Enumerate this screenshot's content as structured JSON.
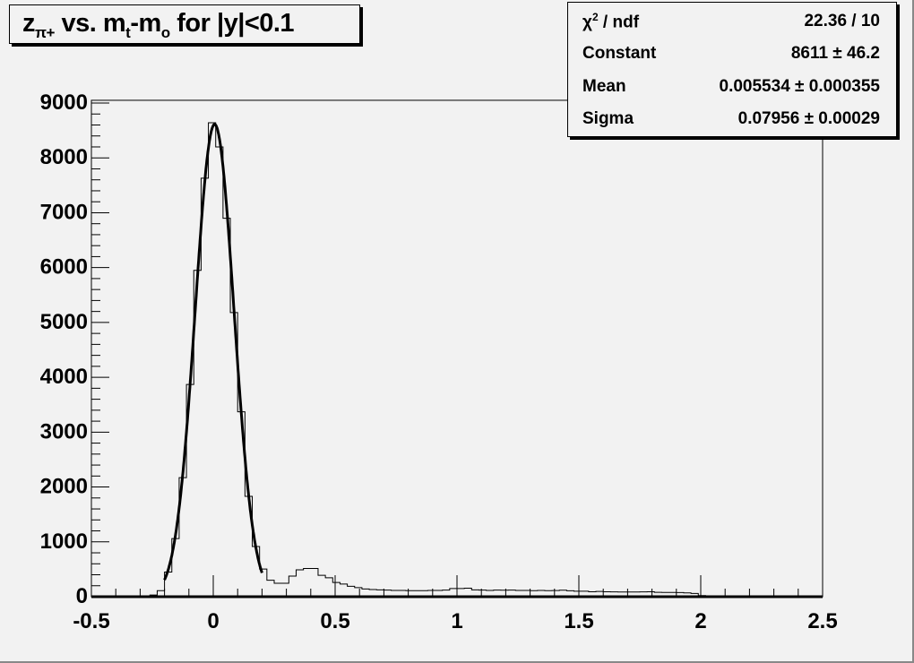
{
  "chart_data": {
    "type": "histogram",
    "title": "z_π+ vs. m_t-m_o for |y|<0.1",
    "title_parts": {
      "main1": "z",
      "sub1": "π+",
      "main2": " vs. m",
      "sub2": "t",
      "main3": "-m",
      "sub3": "o",
      "main4": " for |y|<0.1"
    },
    "xlabel": "",
    "ylabel": "",
    "xlim": [
      -0.5,
      2.5
    ],
    "ylim": [
      0,
      9050
    ],
    "x_ticks": [
      "-0.5",
      "0",
      "0.5",
      "1",
      "1.5",
      "2",
      "2.5"
    ],
    "y_ticks": [
      "0",
      "1000",
      "2000",
      "3000",
      "4000",
      "5000",
      "6000",
      "7000",
      "8000",
      "9000"
    ],
    "grid": false,
    "bin_width": 0.03,
    "bin_start": -0.5,
    "counts": [
      0,
      0,
      0,
      0,
      0,
      0,
      0,
      10,
      30,
      110,
      450,
      1060,
      2170,
      3870,
      5950,
      7630,
      8640,
      8200,
      6900,
      5180,
      3370,
      1830,
      915,
      505,
      300,
      245,
      245,
      375,
      490,
      515,
      515,
      390,
      345,
      260,
      230,
      190,
      165,
      140,
      130,
      125,
      120,
      115,
      115,
      110,
      110,
      110,
      115,
      115,
      120,
      150,
      150,
      155,
      125,
      120,
      115,
      120,
      118,
      120,
      115,
      115,
      110,
      115,
      110,
      112,
      118,
      108,
      100,
      100,
      90,
      95,
      90,
      88,
      85,
      85,
      85,
      88,
      90,
      80,
      78,
      78,
      75,
      70,
      60,
      20,
      10,
      5,
      0,
      0,
      0,
      0,
      0,
      0,
      0,
      0,
      0,
      0,
      0,
      0,
      0,
      0
    ],
    "fit": {
      "function": "gaus",
      "constant": 8611,
      "mean": 0.005534,
      "sigma": 0.07956,
      "range": [
        -0.2,
        0.2
      ]
    },
    "stats": [
      {
        "label": "χ",
        "sup": "2",
        "label_rest": " / ndf",
        "value": "22.36 / 10"
      },
      {
        "label": "Constant",
        "value": "8611 ± 46.2"
      },
      {
        "label": "Mean",
        "value": "0.005534 ± 0.000355"
      },
      {
        "label": "Sigma",
        "value": "0.07956 ± 0.00029"
      }
    ],
    "colors": {
      "background": "#f2f2f2",
      "line": "#000000"
    }
  }
}
